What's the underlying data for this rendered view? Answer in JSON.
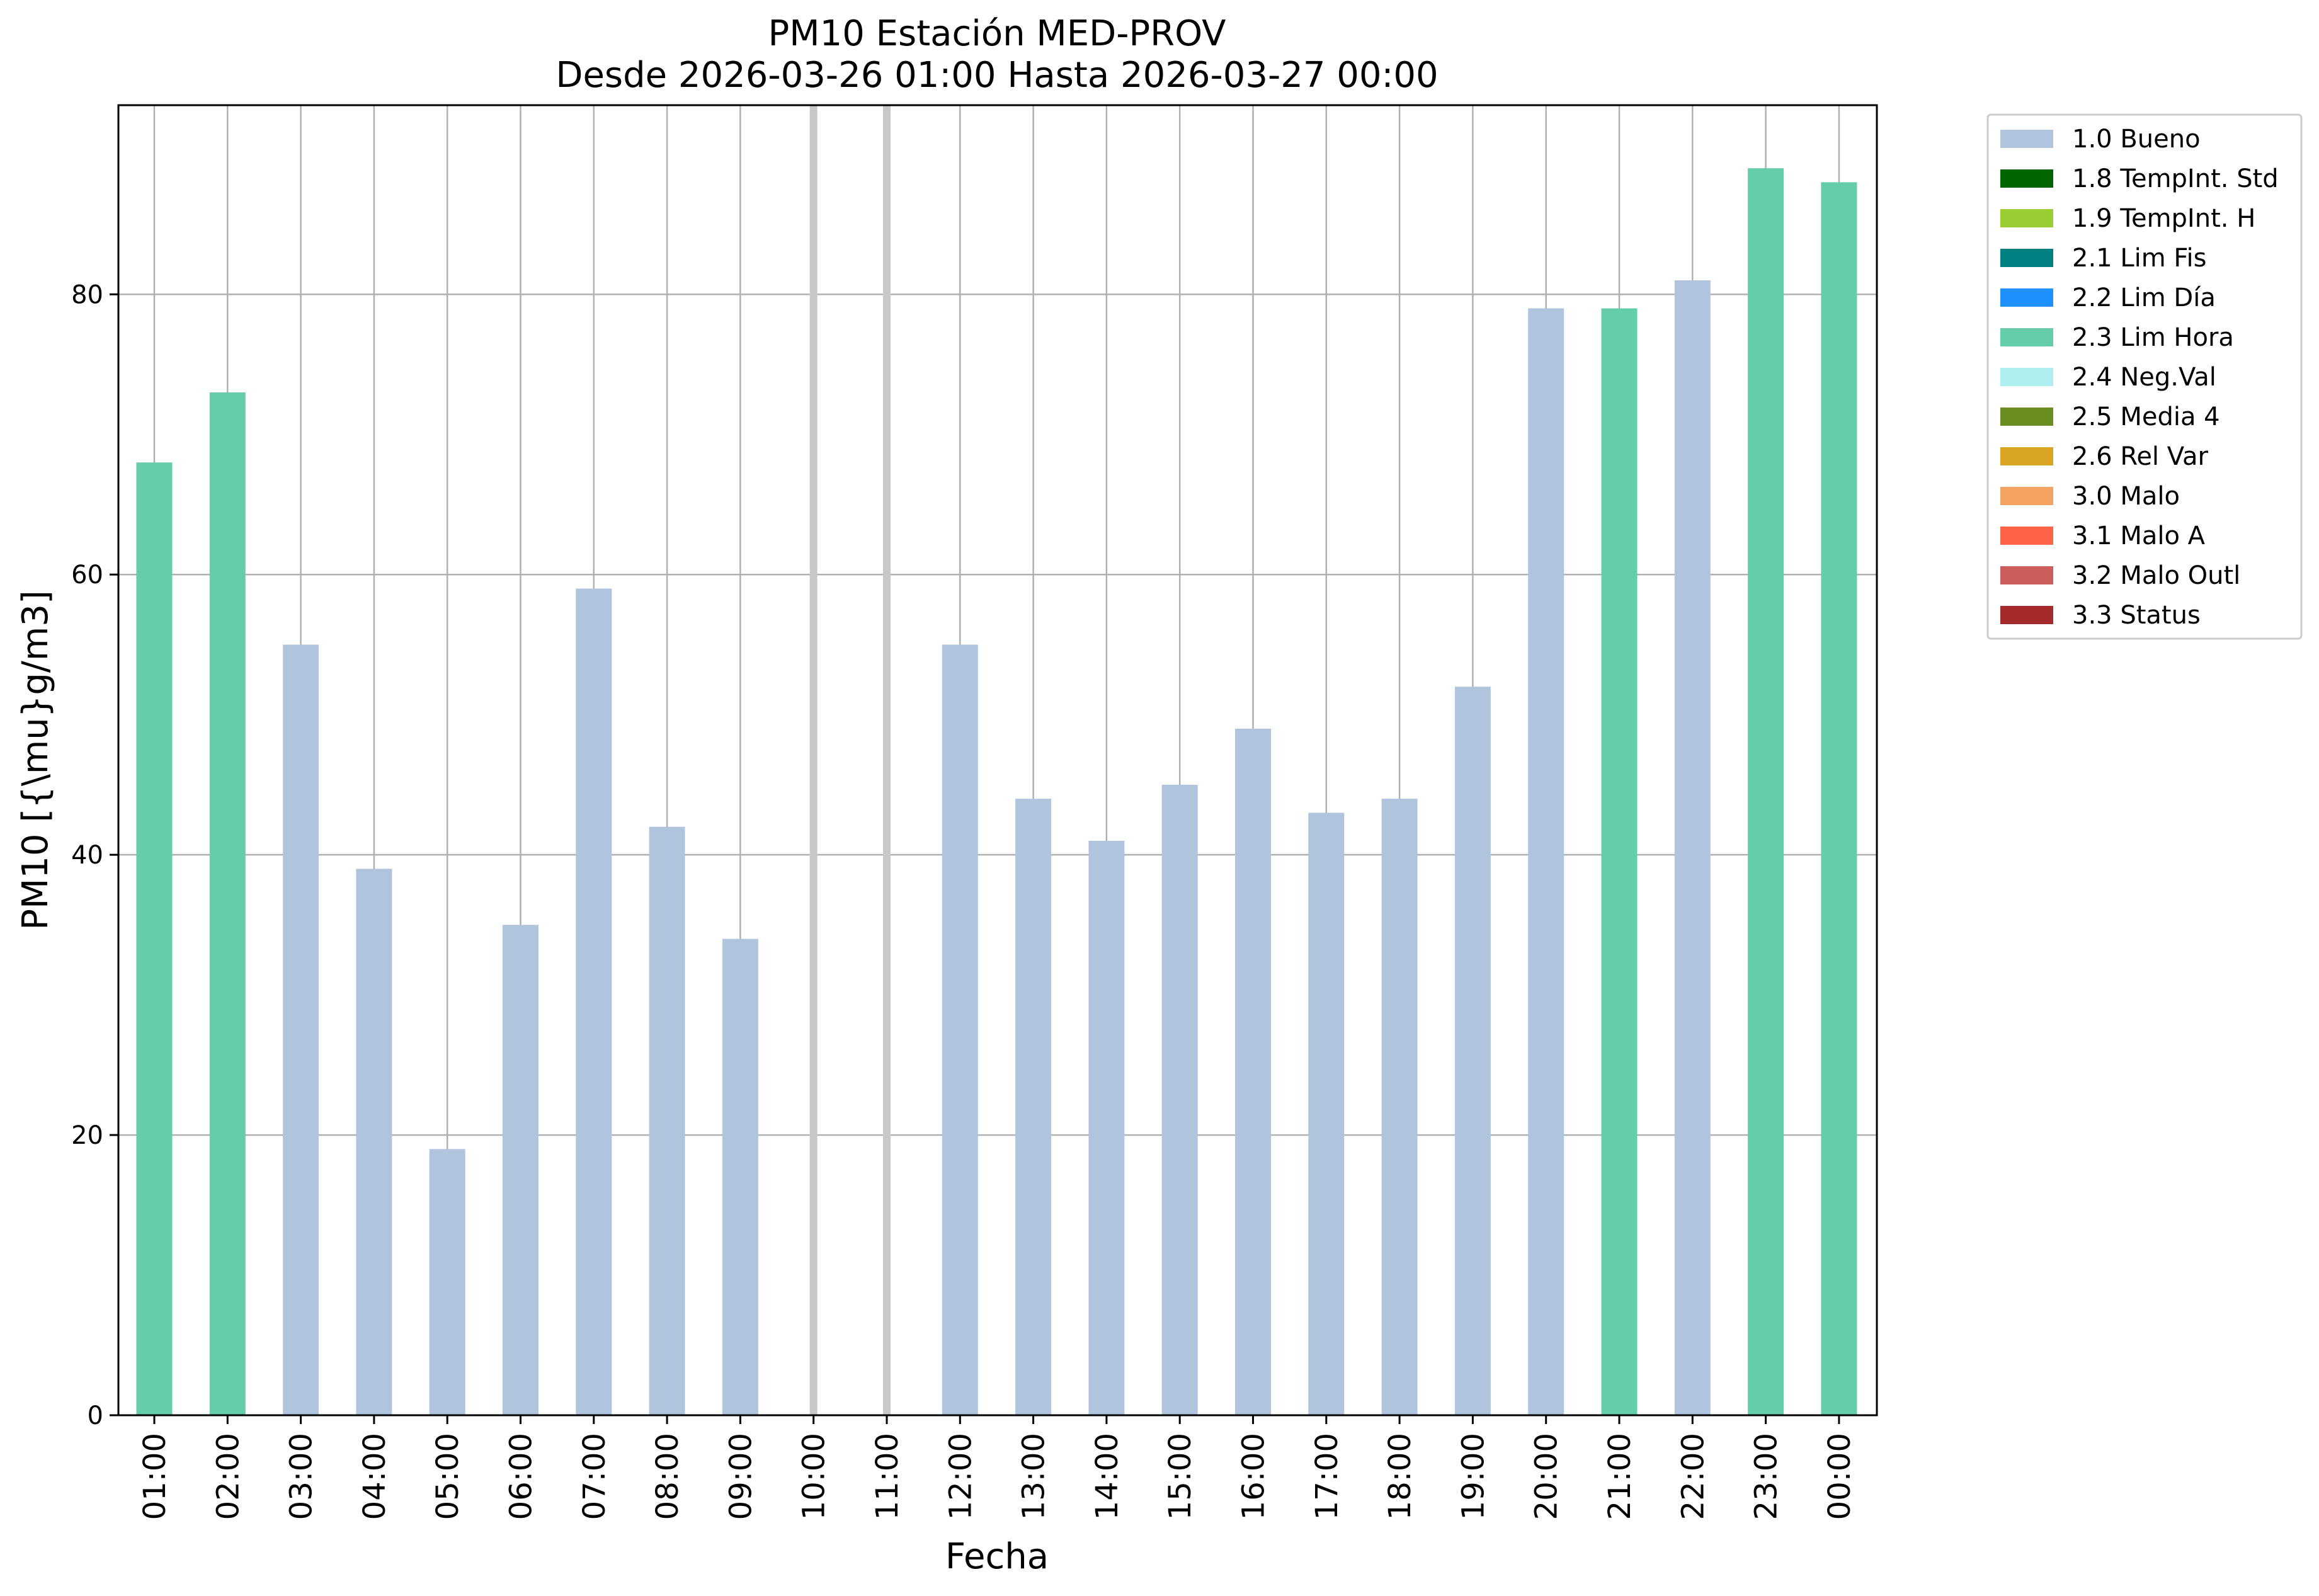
{
  "chart_data": {
    "type": "bar",
    "title": "PM10 Estación MED-PROV",
    "subtitle": "Desde 2026-03-26 01:00 Hasta 2026-03-27 00:00",
    "xlabel": "Fecha",
    "ylabel": "PM10 [{\\mu}g/m3]",
    "ylim": [
      0,
      93.5
    ],
    "yticks": [
      0,
      20,
      40,
      60,
      80
    ],
    "grid": true,
    "legend_position": "outside-right-top",
    "categories": [
      "01:00",
      "02:00",
      "03:00",
      "04:00",
      "05:00",
      "06:00",
      "07:00",
      "08:00",
      "09:00",
      "10:00",
      "11:00",
      "12:00",
      "13:00",
      "14:00",
      "15:00",
      "16:00",
      "17:00",
      "18:00",
      "19:00",
      "20:00",
      "21:00",
      "22:00",
      "23:00",
      "00:00"
    ],
    "values": [
      68,
      73,
      55,
      39,
      19,
      35,
      59,
      42,
      34,
      null,
      null,
      55,
      44,
      41,
      45,
      49,
      43,
      44,
      52,
      79,
      79,
      81,
      89,
      88
    ],
    "flags": [
      "2.3 Lim Hora",
      "2.3 Lim Hora",
      "1.0 Bueno",
      "1.0 Bueno",
      "1.0 Bueno",
      "1.0 Bueno",
      "1.0 Bueno",
      "1.0 Bueno",
      "1.0 Bueno",
      null,
      null,
      "1.0 Bueno",
      "1.0 Bueno",
      "1.0 Bueno",
      "1.0 Bueno",
      "1.0 Bueno",
      "1.0 Bueno",
      "1.0 Bueno",
      "1.0 Bueno",
      "1.0 Bueno",
      "2.3 Lim Hora",
      "1.0 Bueno",
      "2.3 Lim Hora",
      "2.3 Lim Hora"
    ],
    "missing_markers": [
      "10:00",
      "11:00"
    ],
    "legend": [
      {
        "label": "1.0 Bueno",
        "color": "#b0c4de"
      },
      {
        "label": "1.8 TempInt. Std",
        "color": "#006400"
      },
      {
        "label": "1.9 TempInt. H",
        "color": "#9acd32"
      },
      {
        "label": "2.1 Lim Fis",
        "color": "#008080"
      },
      {
        "label": "2.2 Lim Día",
        "color": "#1e90ff"
      },
      {
        "label": "2.3 Lim Hora",
        "color": "#66cdaa"
      },
      {
        "label": "2.4 Neg.Val",
        "color": "#afeeee"
      },
      {
        "label": "2.5 Media 4",
        "color": "#6b8e23"
      },
      {
        "label": "2.6 Rel Var",
        "color": "#daa520"
      },
      {
        "label": "3.0 Malo",
        "color": "#f4a460"
      },
      {
        "label": "3.1 Malo A",
        "color": "#ff6347"
      },
      {
        "label": "3.2 Malo Outl",
        "color": "#cd5c5c"
      },
      {
        "label": "3.3 Status",
        "color": "#a52a2a"
      }
    ]
  }
}
